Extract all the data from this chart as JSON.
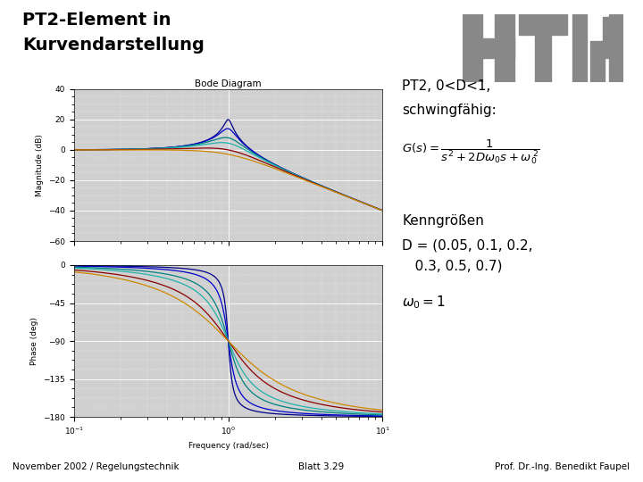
{
  "title_line1": "PT2-Element in",
  "title_line2": "Kurvendarstellung",
  "bode_title": "Bode Diagram",
  "D_values": [
    0.05,
    0.1,
    0.2,
    0.3,
    0.5,
    0.7
  ],
  "omega0": 1.0,
  "mag_ylim": [
    -60,
    40
  ],
  "phase_ylim": [
    -180,
    0
  ],
  "mag_yticks": [
    -60,
    -40,
    -20,
    0,
    20,
    40
  ],
  "phase_yticks": [
    -180,
    -135,
    -90,
    -45,
    0
  ],
  "xlabel": "Frequency (rad/sec)",
  "mag_ylabel": "Magnitude (dB)",
  "phase_ylabel": "Phase (deg)",
  "plot_colors": [
    "#00008B",
    "#0000CD",
    "#008080",
    "#20B2AA",
    "#8B0000",
    "#CC8800"
  ],
  "bg_color": "#ffffff",
  "panel_bg": "#c8c8c8",
  "plot_bg": "#d0d0d0",
  "grid_color": "#ffffff",
  "divider_color": "#555555",
  "footer_left": "November 2002 / Regelungstechnik",
  "footer_center": "Blatt 3.29",
  "footer_right": "Prof. Dr.-Ing. Benedikt Faupel",
  "pt2_text1": "PT2, 0<D<1,",
  "pt2_text2": "schwingfähig:",
  "kenngroessen": "Kenngrößen",
  "D_label_line1": "D = (0.05, 0.1, 0.2,",
  "D_label_line2": "   0.3, 0.5, 0.7)",
  "logo_color": "#888888",
  "title_fontsize": 14,
  "body_fontsize": 11,
  "footer_fontsize": 7.5
}
